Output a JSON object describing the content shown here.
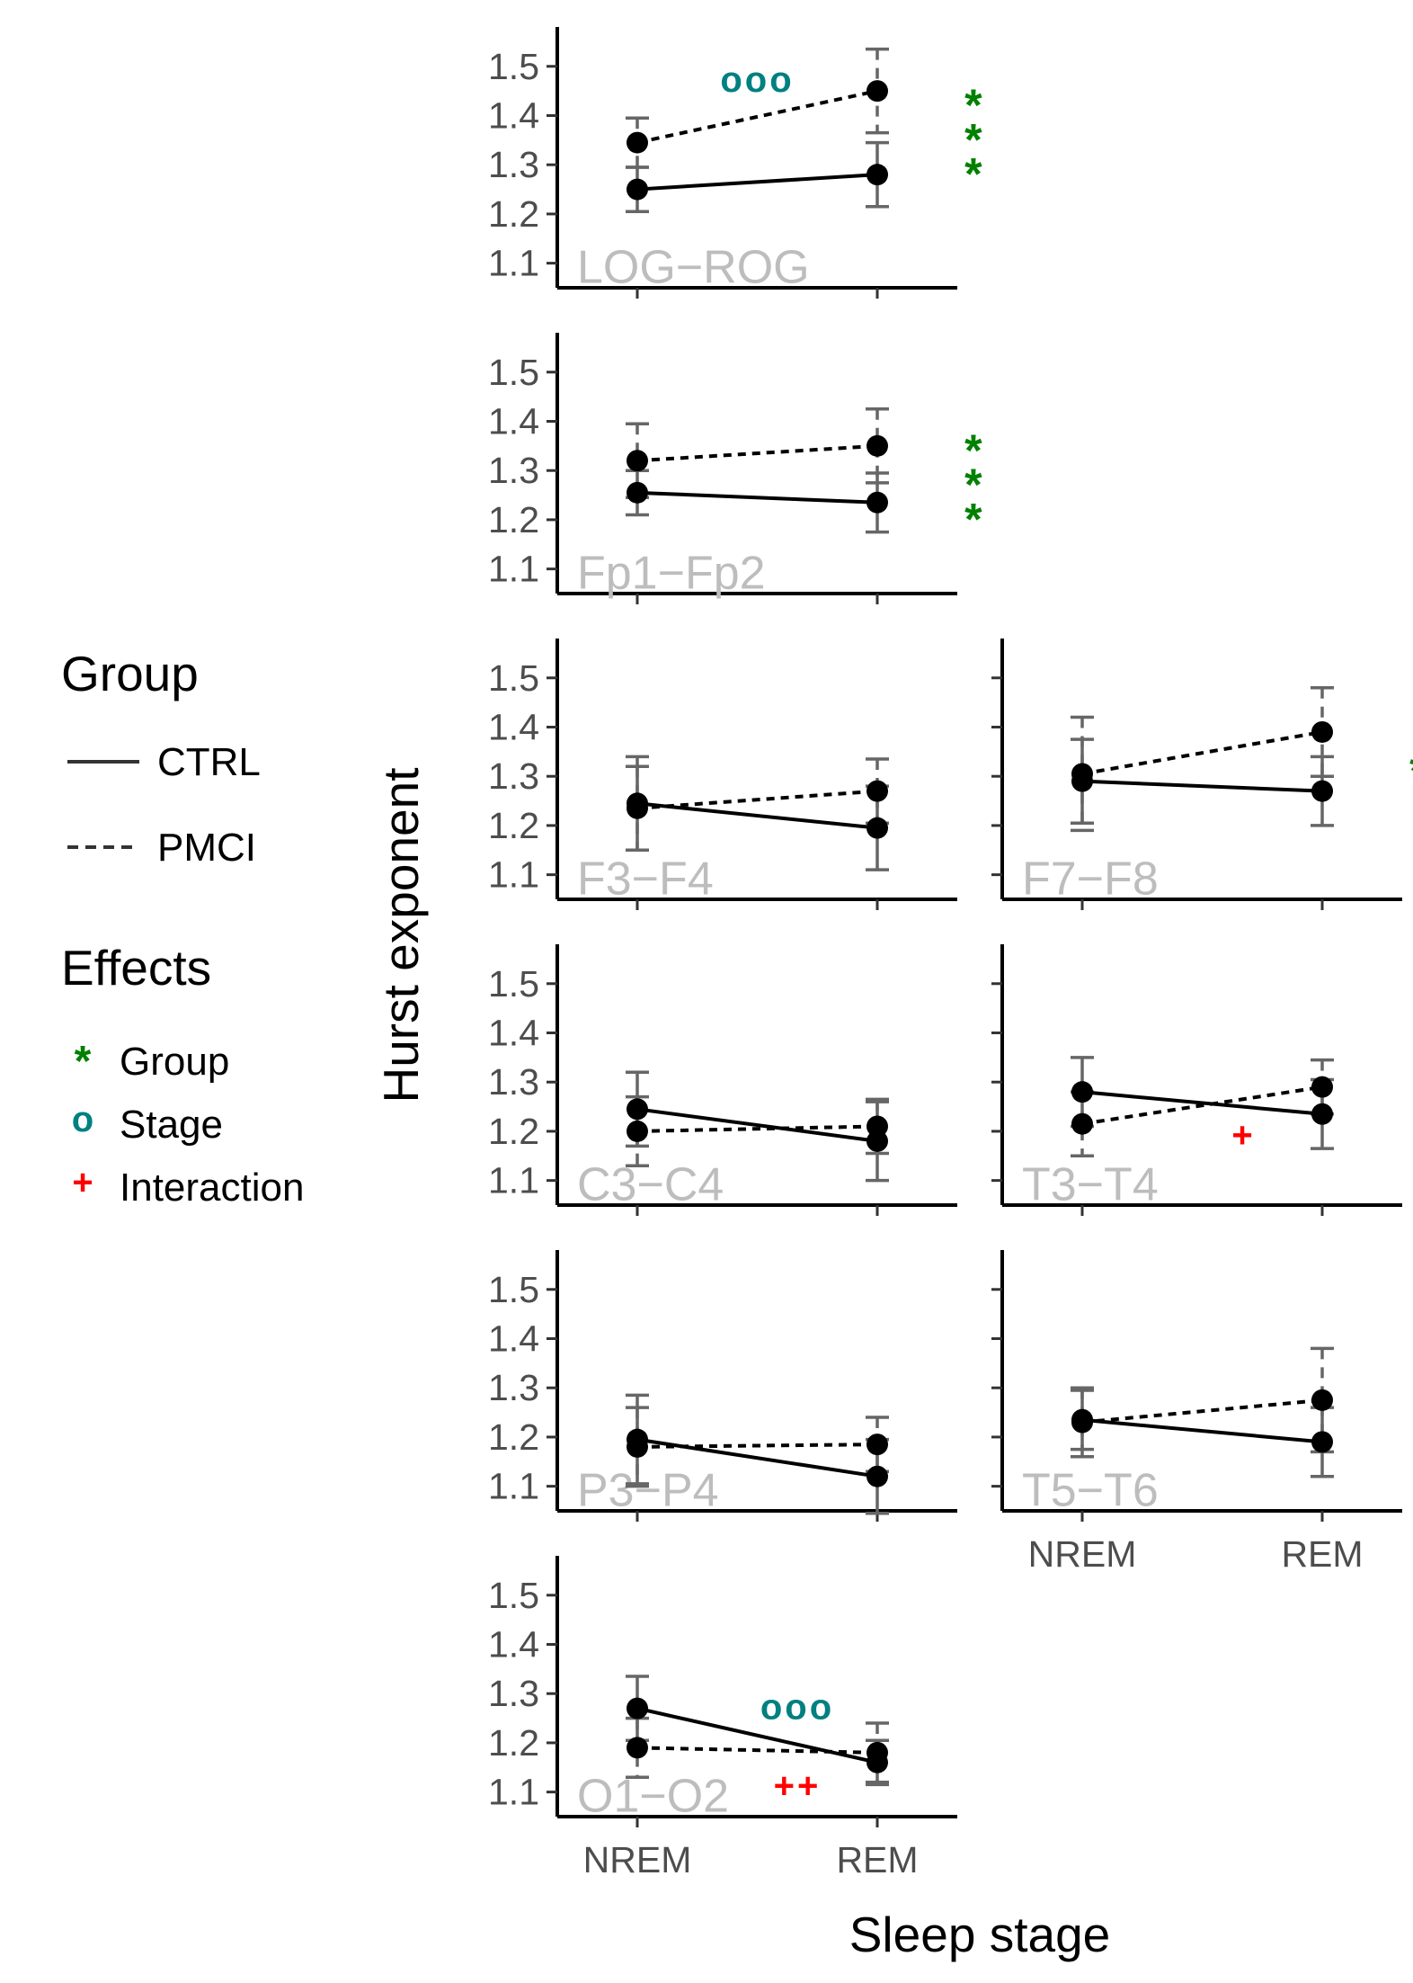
{
  "chart_data": {
    "type": "line",
    "xlabel": "Sleep stage",
    "ylabel": "Hurst exponent",
    "categories": [
      "NREM",
      "REM"
    ],
    "y_ticks": [
      "1.1",
      "1.2",
      "1.3",
      "1.4",
      "1.5"
    ],
    "ylim": [
      1.05,
      1.58
    ],
    "legend": {
      "group_title": "Group",
      "groups": [
        {
          "name": "CTRL",
          "style": "solid"
        },
        {
          "name": "PMCI",
          "style": "dashed"
        }
      ],
      "effects_title": "Effects",
      "effects": [
        {
          "symbol": "*",
          "name": "Group",
          "color": "#008000"
        },
        {
          "symbol": "o",
          "name": "Stage",
          "color": "#008080"
        },
        {
          "symbol": "+",
          "name": "Interaction",
          "color": "#ff0000"
        }
      ]
    },
    "colors": {
      "group": "#008000",
      "stage": "#008080",
      "interaction": "#ff0000",
      "panel_label": "#bdbdbd",
      "errorbar": "#666666"
    },
    "panels": [
      {
        "label": "LOG−ROG",
        "ctrl": {
          "mean": [
            1.25,
            1.28
          ],
          "err": [
            0.045,
            0.065
          ]
        },
        "pmci": {
          "mean": [
            1.345,
            1.45
          ],
          "err": [
            0.05,
            0.085
          ]
        },
        "annotations": [
          {
            "text": "ooo",
            "kind": "stage"
          },
          {
            "text": "*",
            "kind": "group"
          },
          {
            "text": "*",
            "kind": "group"
          },
          {
            "text": "*",
            "kind": "group"
          }
        ]
      },
      {
        "label": "Fp1−Fp2",
        "ctrl": {
          "mean": [
            1.255,
            1.235
          ],
          "err": [
            0.045,
            0.06
          ]
        },
        "pmci": {
          "mean": [
            1.32,
            1.35
          ],
          "err": [
            0.075,
            0.075
          ]
        },
        "annotations": [
          {
            "text": "*",
            "kind": "group"
          },
          {
            "text": "*",
            "kind": "group"
          },
          {
            "text": "*",
            "kind": "group"
          }
        ]
      },
      {
        "label": "F3−F4",
        "ctrl": {
          "mean": [
            1.245,
            1.195
          ],
          "err": [
            0.095,
            0.085
          ]
        },
        "pmci": {
          "mean": [
            1.235,
            1.27
          ],
          "err": [
            0.085,
            0.065
          ]
        },
        "annotations": []
      },
      {
        "label": "F7−F8",
        "ctrl": {
          "mean": [
            1.29,
            1.27
          ],
          "err": [
            0.085,
            0.07
          ]
        },
        "pmci": {
          "mean": [
            1.305,
            1.39
          ],
          "err": [
            0.115,
            0.09
          ]
        },
        "annotations": [
          {
            "text": "*",
            "kind": "group"
          }
        ]
      },
      {
        "label": "C3−C4",
        "ctrl": {
          "mean": [
            1.245,
            1.18
          ],
          "err": [
            0.075,
            0.08
          ]
        },
        "pmci": {
          "mean": [
            1.2,
            1.21
          ],
          "err": [
            0.07,
            0.055
          ]
        },
        "annotations": []
      },
      {
        "label": "T3−T4",
        "ctrl": {
          "mean": [
            1.28,
            1.235
          ],
          "err": [
            0.07,
            0.07
          ]
        },
        "pmci": {
          "mean": [
            1.215,
            1.29
          ],
          "err": [
            0.065,
            0.055
          ]
        },
        "annotations": [
          {
            "text": "+",
            "kind": "interaction"
          }
        ]
      },
      {
        "label": "P3−P4",
        "ctrl": {
          "mean": [
            1.195,
            1.12
          ],
          "err": [
            0.09,
            0.075
          ]
        },
        "pmci": {
          "mean": [
            1.18,
            1.185
          ],
          "err": [
            0.08,
            0.055
          ]
        },
        "annotations": []
      },
      {
        "label": "T5−T6",
        "ctrl": {
          "mean": [
            1.235,
            1.19
          ],
          "err": [
            0.06,
            0.07
          ]
        },
        "pmci": {
          "mean": [
            1.23,
            1.275
          ],
          "err": [
            0.07,
            0.105
          ]
        },
        "annotations": []
      },
      {
        "label": "O1−O2",
        "ctrl": {
          "mean": [
            1.27,
            1.16
          ],
          "err": [
            0.065,
            0.045
          ]
        },
        "pmci": {
          "mean": [
            1.19,
            1.18
          ],
          "err": [
            0.06,
            0.06
          ]
        },
        "annotations": [
          {
            "text": "ooo",
            "kind": "stage"
          },
          {
            "text": "++",
            "kind": "interaction"
          }
        ]
      }
    ]
  }
}
